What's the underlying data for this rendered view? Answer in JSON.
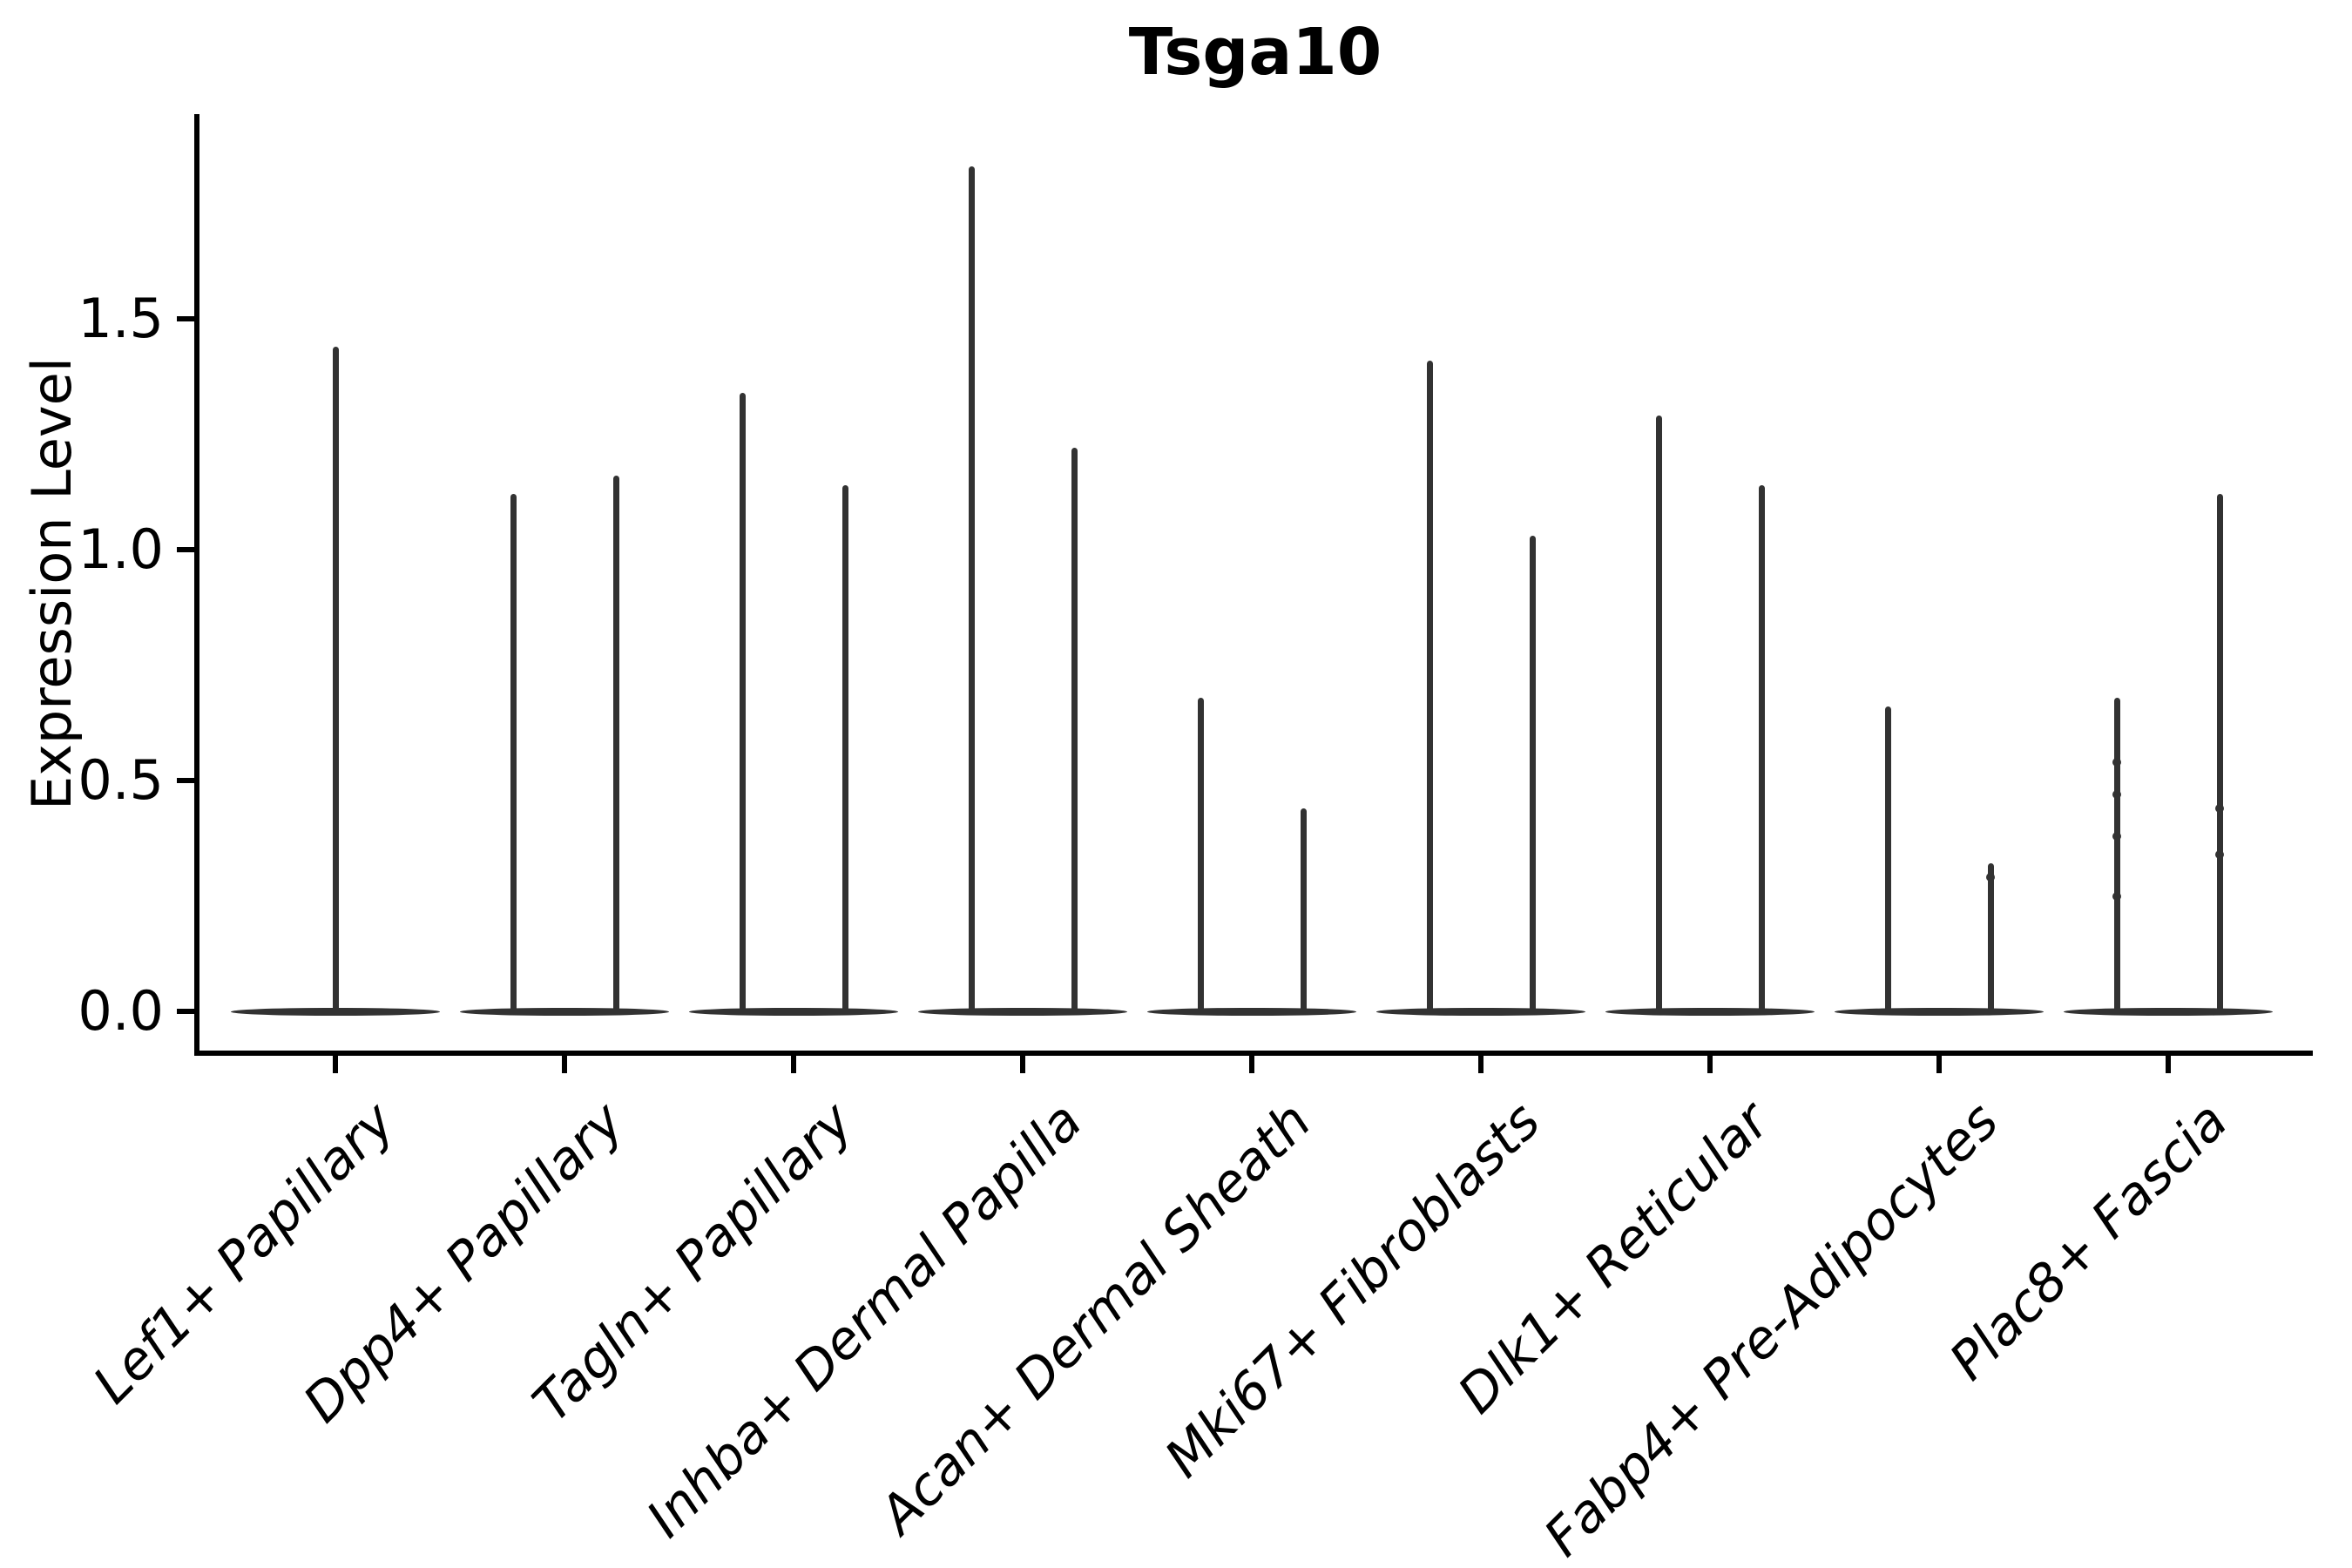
{
  "figure": {
    "title": "Tsga10"
  },
  "chart_data": {
    "type": "violin",
    "title": "Tsga10",
    "ylabel": "Expression Level",
    "xlabel": "",
    "grid": false,
    "legend": null,
    "ylim": [
      -0.09,
      1.95
    ],
    "yticks": [
      {
        "label": "0.0",
        "value": 0.0
      },
      {
        "label": "0.5",
        "value": 0.5
      },
      {
        "label": "1.0",
        "value": 1.0
      },
      {
        "label": "1.5",
        "value": 1.5
      }
    ],
    "categories": [
      "Lef1+ Papillary",
      "Dpp4+ Papillary",
      "Tagln+ Papillary",
      "Inhba+ Dermal Papilla",
      "Acan+ Dermal Sheath",
      "Mki67+ Fibroblasts",
      "Dlk1+ Reticular",
      "Fabp4+ Pre-Adipocytes",
      "Plac8+ Fascia"
    ],
    "violins": [
      {
        "category": "Lef1+ Papillary",
        "baseline_value": 0.0,
        "spikes": [
          {
            "pos": "center",
            "max": 1.44
          }
        ],
        "dots": []
      },
      {
        "category": "Dpp4+ Papillary",
        "baseline_value": 0.0,
        "spikes": [
          {
            "pos": "left",
            "max": 1.12
          },
          {
            "pos": "right",
            "max": 1.16
          }
        ],
        "dots": []
      },
      {
        "category": "Tagln+ Papillary",
        "baseline_value": 0.0,
        "spikes": [
          {
            "pos": "left",
            "max": 1.34
          },
          {
            "pos": "right",
            "max": 1.14
          }
        ],
        "dots": []
      },
      {
        "category": "Inhba+ Dermal Papilla",
        "baseline_value": 0.0,
        "spikes": [
          {
            "pos": "left",
            "max": 1.83
          },
          {
            "pos": "right",
            "max": 1.22
          }
        ],
        "dots": []
      },
      {
        "category": "Acan+ Dermal Sheath",
        "baseline_value": 0.0,
        "spikes": [
          {
            "pos": "left",
            "max": 0.68
          },
          {
            "pos": "right",
            "max": 0.44
          }
        ],
        "dots": []
      },
      {
        "category": "Mki67+ Fibroblasts",
        "baseline_value": 0.0,
        "spikes": [
          {
            "pos": "left",
            "max": 1.41
          },
          {
            "pos": "right",
            "max": 1.03
          }
        ],
        "dots": []
      },
      {
        "category": "Dlk1+ Reticular",
        "baseline_value": 0.0,
        "spikes": [
          {
            "pos": "left",
            "max": 1.29
          },
          {
            "pos": "right",
            "max": 1.14
          }
        ],
        "dots": []
      },
      {
        "category": "Fabp4+ Pre-Adipocytes",
        "baseline_value": 0.0,
        "spikes": [
          {
            "pos": "left",
            "max": 0.66
          },
          {
            "pos": "right",
            "max": 0.32
          }
        ],
        "dots": [
          {
            "pos": "right",
            "value": 0.29
          }
        ]
      },
      {
        "category": "Plac8+ Fascia",
        "baseline_value": 0.0,
        "spikes": [
          {
            "pos": "left",
            "max": 0.68
          },
          {
            "pos": "right",
            "max": 1.12
          }
        ],
        "dots": [
          {
            "pos": "left",
            "value": 0.54
          },
          {
            "pos": "left",
            "value": 0.47
          },
          {
            "pos": "left",
            "value": 0.38
          },
          {
            "pos": "left",
            "value": 0.25
          },
          {
            "pos": "right",
            "value": 0.44
          },
          {
            "pos": "right",
            "value": 0.34
          }
        ]
      }
    ],
    "colors": {
      "violin": "#323232",
      "axis": "#000000",
      "text": "#000000",
      "background": "#ffffff"
    }
  }
}
